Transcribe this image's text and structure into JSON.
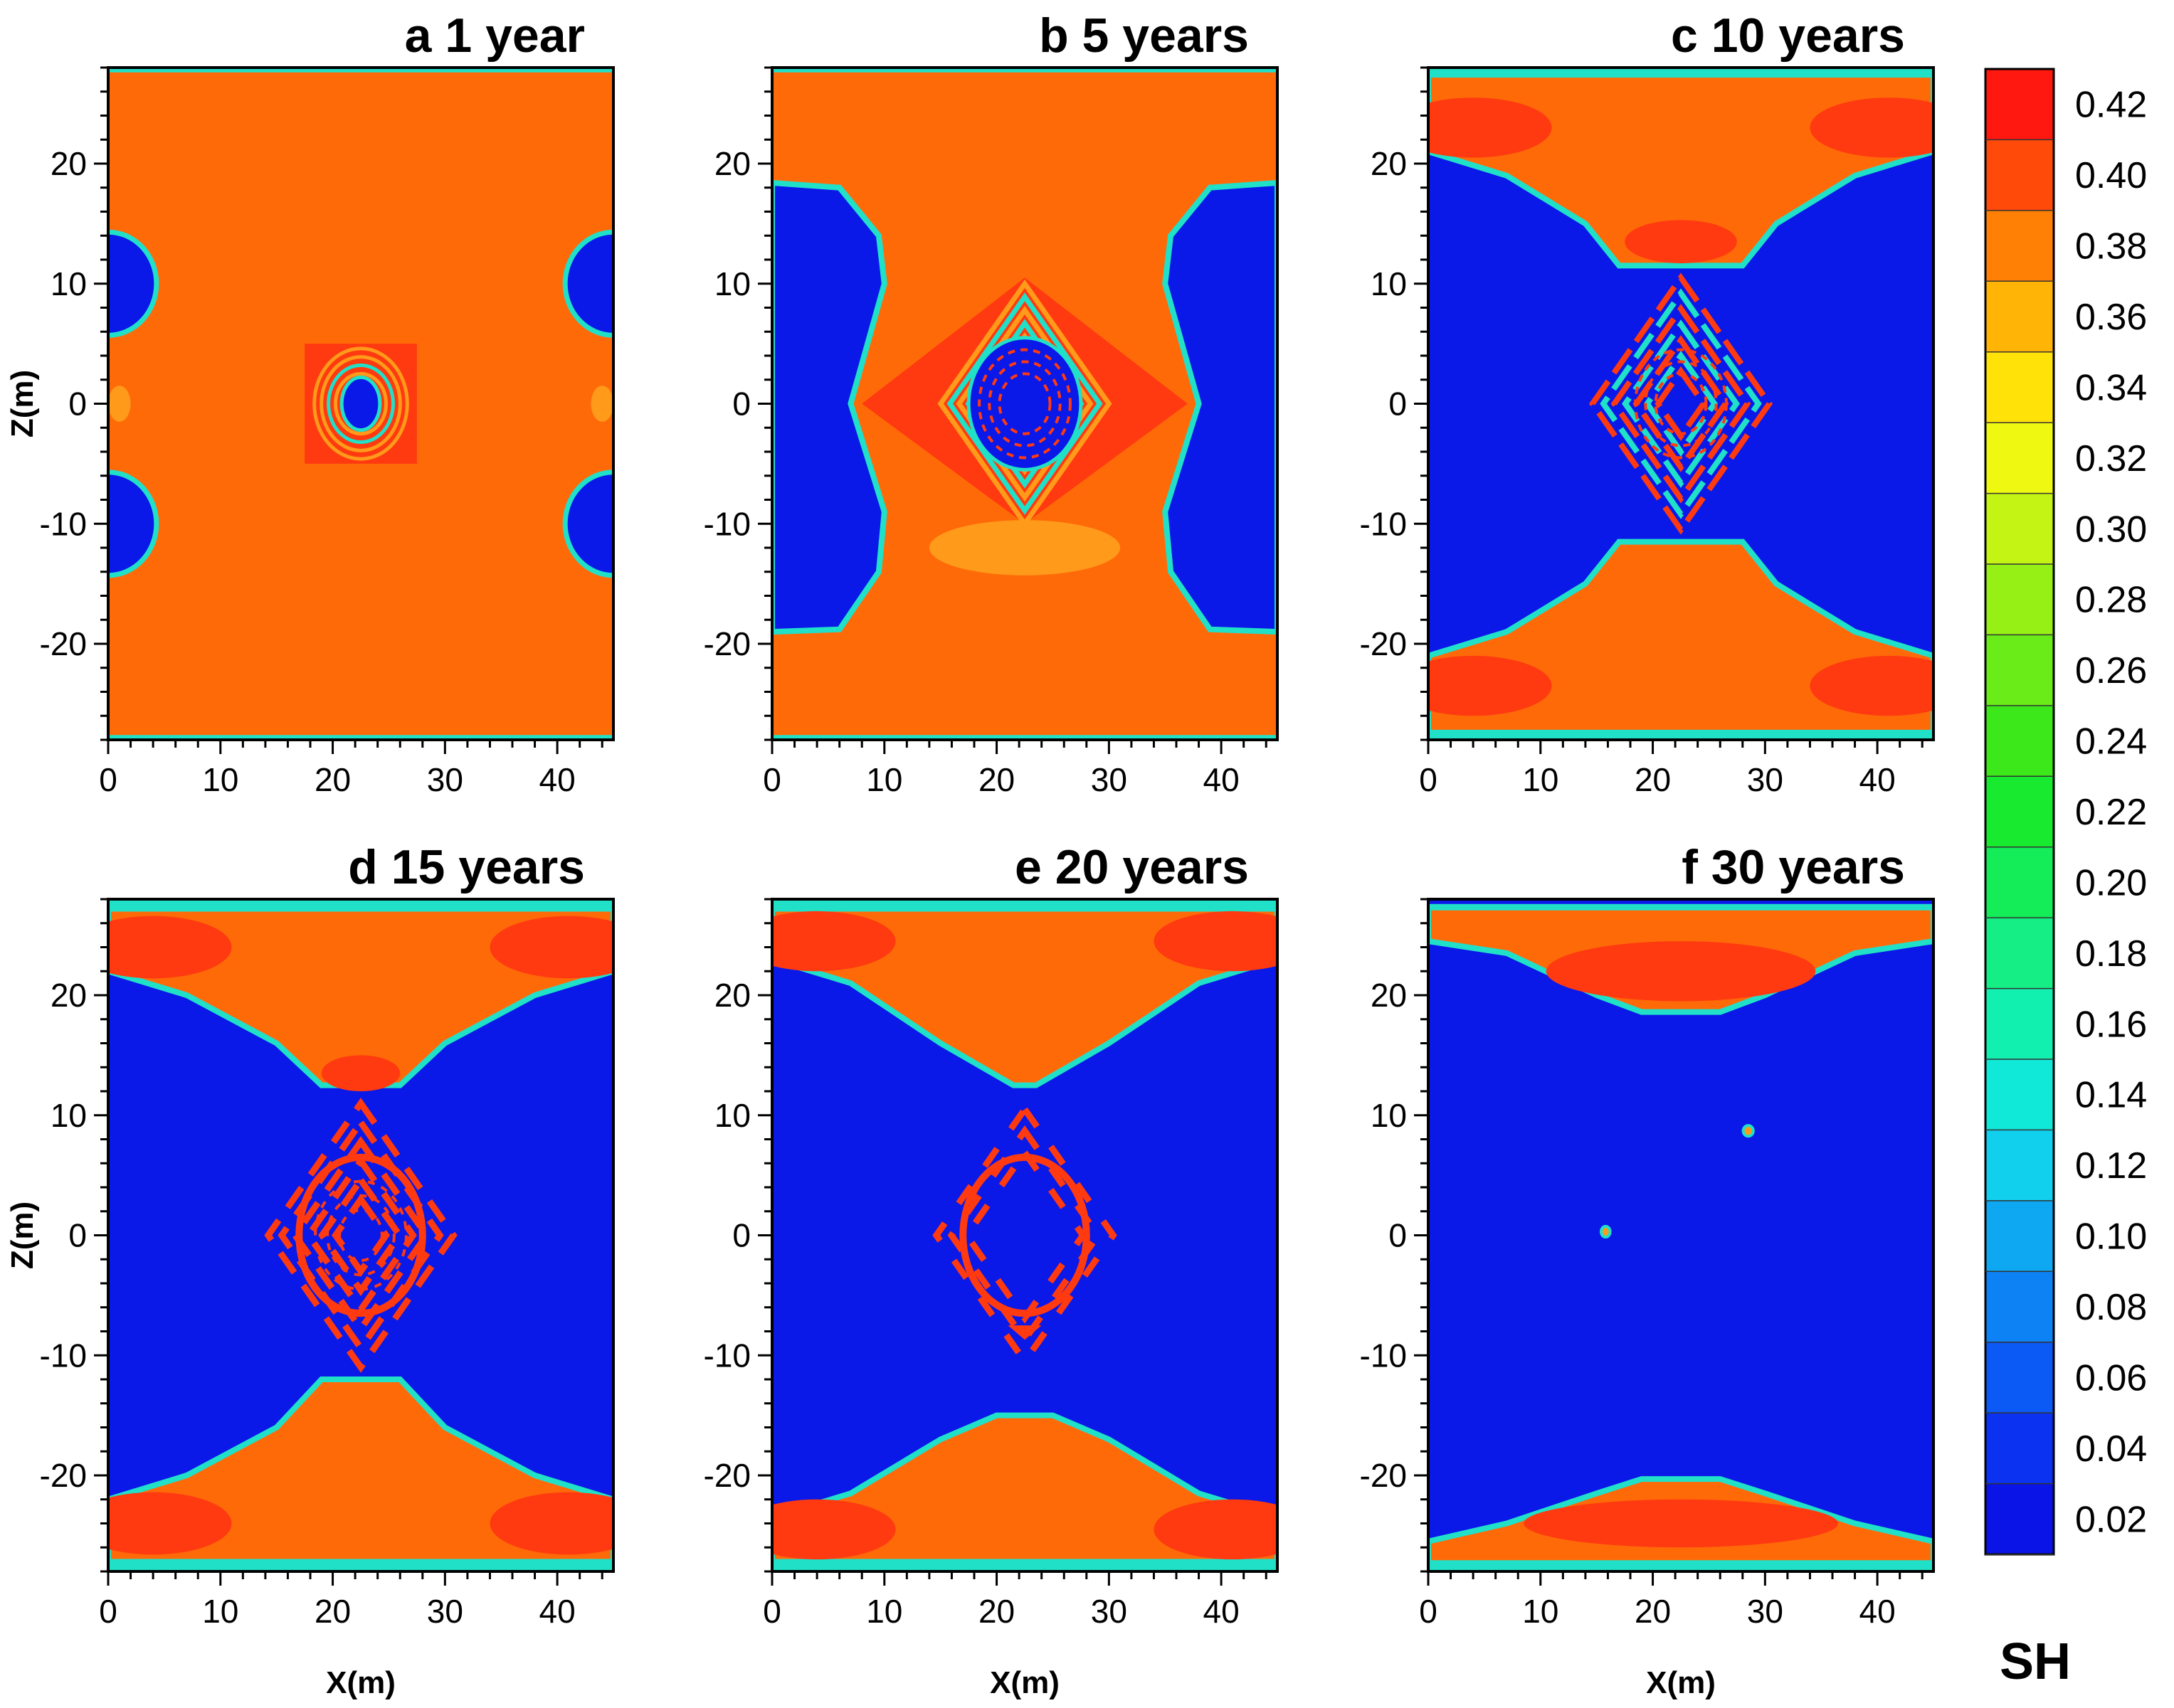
{
  "chart_data": {
    "type": "heatmap",
    "variable": "SH",
    "colorbar": {
      "title": "SH",
      "levels": [
        0.02,
        0.04,
        0.06,
        0.08,
        0.1,
        0.12,
        0.14,
        0.16,
        0.18,
        0.2,
        0.22,
        0.24,
        0.26,
        0.28,
        0.3,
        0.32,
        0.34,
        0.36,
        0.38,
        0.4,
        0.42
      ],
      "labels": [
        "0.02",
        "0.04",
        "0.06",
        "0.08",
        "0.10",
        "0.12",
        "0.14",
        "0.16",
        "0.18",
        "0.20",
        "0.22",
        "0.24",
        "0.26",
        "0.28",
        "0.30",
        "0.32",
        "0.34",
        "0.36",
        "0.38",
        "0.40",
        "0.42"
      ],
      "colors": [
        "#0a14e6",
        "#0a32f0",
        "#0b5af5",
        "#0d82f5",
        "#0ea8f2",
        "#10d0ee",
        "#10e8d8",
        "#12f0b0",
        "#14ee84",
        "#14ec58",
        "#18ea30",
        "#3ce81a",
        "#6aec18",
        "#96f016",
        "#c4f414",
        "#eef810",
        "#ffe208",
        "#ffb406",
        "#ff8004",
        "#ff4a0a",
        "#ff1810"
      ]
    },
    "colors": {
      "hydrate_high": "#ff6a08",
      "hydrate_peak": "#ff3a10",
      "hydrate_mid": "#ff9a1a",
      "dissociated": "#0a18e8",
      "band_edge": "#20e0c8"
    },
    "xlim": [
      0,
      45
    ],
    "ylim": [
      -28,
      28
    ],
    "x_ticks": [
      0,
      10,
      20,
      30,
      40
    ],
    "y_ticks": [
      -20,
      -10,
      0,
      10,
      20
    ],
    "xlabel": "X(m)",
    "ylabel": "Z(m)",
    "panels": [
      {
        "letter": "a",
        "title": "1 year",
        "show_ylabel": true,
        "show_xlabel": false
      },
      {
        "letter": "b",
        "title": "5 years",
        "show_ylabel": false,
        "show_xlabel": false
      },
      {
        "letter": "c",
        "title": "10 years",
        "show_ylabel": false,
        "show_xlabel": false
      },
      {
        "letter": "d",
        "title": "15 years",
        "show_ylabel": true,
        "show_xlabel": true
      },
      {
        "letter": "e",
        "title": "20 years",
        "show_ylabel": false,
        "show_xlabel": true
      },
      {
        "letter": "f",
        "title": "30 years",
        "show_ylabel": false,
        "show_xlabel": true
      }
    ]
  }
}
